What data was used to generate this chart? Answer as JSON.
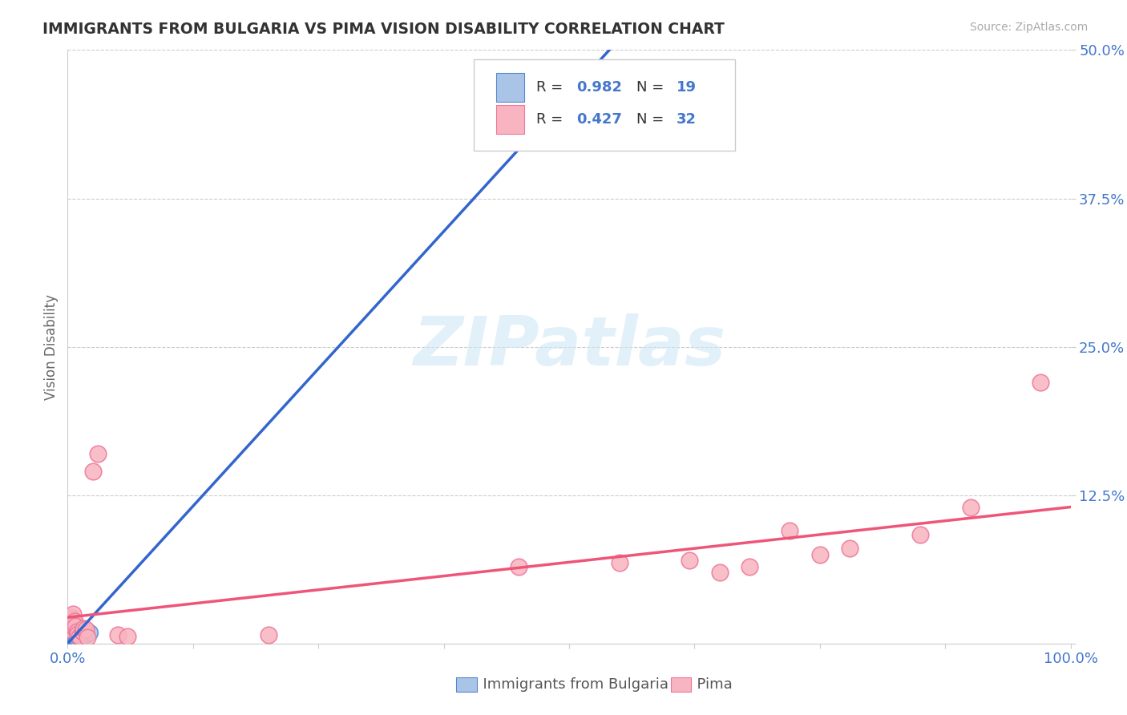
{
  "title": "IMMIGRANTS FROM BULGARIA VS PIMA VISION DISABILITY CORRELATION CHART",
  "source": "Source: ZipAtlas.com",
  "ylabel": "Vision Disability",
  "xlim": [
    0.0,
    1.0
  ],
  "ylim": [
    0.0,
    0.5
  ],
  "xtick_positions": [
    0.0,
    0.125,
    0.25,
    0.375,
    0.5,
    0.625,
    0.75,
    0.875,
    1.0
  ],
  "xticklabels": [
    "0.0%",
    "",
    "",
    "",
    "",
    "",
    "",
    "",
    "100.0%"
  ],
  "ytick_positions": [
    0.0,
    0.125,
    0.25,
    0.375,
    0.5
  ],
  "yticklabels": [
    "",
    "12.5%",
    "25.0%",
    "37.5%",
    "50.0%"
  ],
  "background_color": "#ffffff",
  "grid_color": "#cccccc",
  "legend_R_blue": "0.982",
  "legend_N_blue": "19",
  "legend_R_pink": "0.427",
  "legend_N_pink": "32",
  "blue_fill": "#aac4e8",
  "blue_edge": "#5588cc",
  "pink_fill": "#f8b4c0",
  "pink_edge": "#ee7799",
  "blue_line_color": "#3366cc",
  "pink_line_color": "#ee5577",
  "label_color": "#4477cc",
  "title_color": "#333333",
  "watermark_color": "#d0e8f5",
  "blue_scatter_x": [
    0.003,
    0.004,
    0.004,
    0.005,
    0.005,
    0.005,
    0.006,
    0.006,
    0.007,
    0.007,
    0.008,
    0.009,
    0.01,
    0.012,
    0.015,
    0.016,
    0.018,
    0.019,
    0.022
  ],
  "blue_scatter_y": [
    0.005,
    0.003,
    0.007,
    0.002,
    0.006,
    0.009,
    0.004,
    0.008,
    0.003,
    0.006,
    0.005,
    0.004,
    0.006,
    0.007,
    0.008,
    0.006,
    0.008,
    0.007,
    0.009
  ],
  "blue_line_x": [
    0.0,
    0.54
  ],
  "blue_line_y": [
    0.0,
    0.5
  ],
  "pink_scatter_x": [
    0.002,
    0.003,
    0.004,
    0.004,
    0.005,
    0.005,
    0.006,
    0.007,
    0.008,
    0.009,
    0.01,
    0.012,
    0.015,
    0.016,
    0.018,
    0.02,
    0.025,
    0.03,
    0.05,
    0.06,
    0.2,
    0.45,
    0.55,
    0.62,
    0.65,
    0.68,
    0.72,
    0.75,
    0.78,
    0.85,
    0.9,
    0.97
  ],
  "pink_scatter_y": [
    0.012,
    0.018,
    0.016,
    0.022,
    0.02,
    0.025,
    0.014,
    0.019,
    0.015,
    0.01,
    0.008,
    0.006,
    0.01,
    0.013,
    0.012,
    0.005,
    0.145,
    0.16,
    0.007,
    0.006,
    0.007,
    0.065,
    0.068,
    0.07,
    0.06,
    0.065,
    0.095,
    0.075,
    0.08,
    0.092,
    0.115,
    0.22
  ],
  "pink_line_x": [
    0.0,
    1.0
  ],
  "pink_line_y": [
    0.022,
    0.115
  ],
  "series1_label": "Immigrants from Bulgaria",
  "series2_label": "Pima"
}
